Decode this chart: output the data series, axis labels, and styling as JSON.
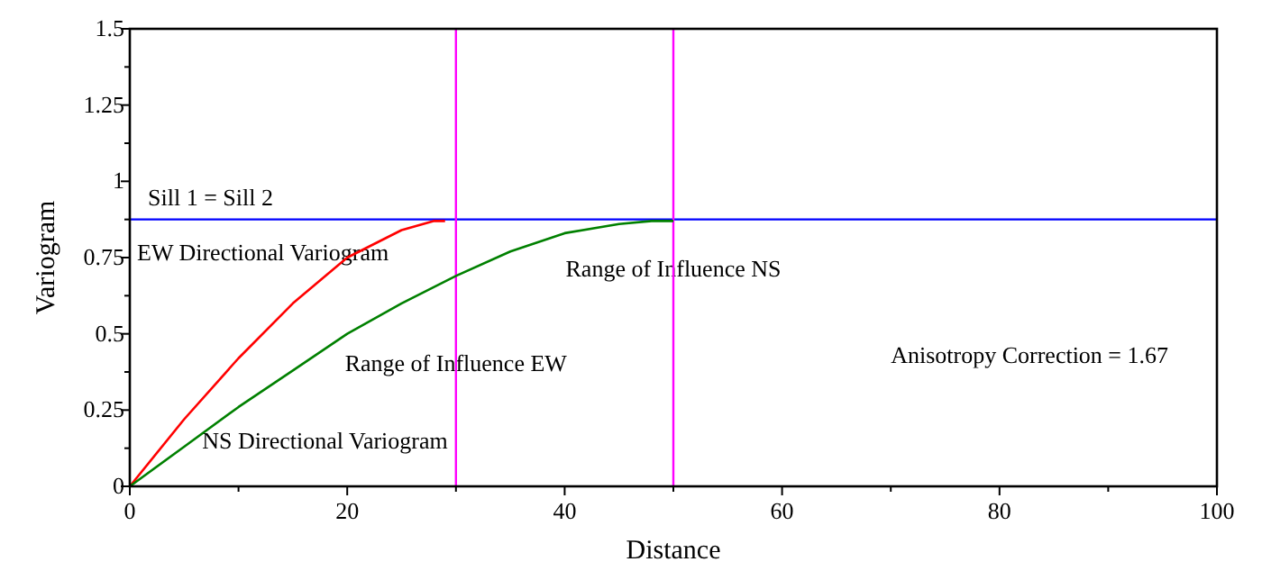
{
  "chart_data": {
    "type": "line",
    "xlabel": "Distance",
    "ylabel": "Variogram",
    "xlim": [
      0,
      100
    ],
    "ylim": [
      0,
      1.5
    ],
    "xticks": [
      0,
      {
        "value": 10,
        "label": null
      },
      20,
      {
        "value": 30,
        "label": null
      },
      40,
      {
        "value": 50,
        "label": null
      },
      60,
      {
        "value": 70,
        "label": null
      },
      80,
      {
        "value": 90,
        "label": null
      },
      100
    ],
    "yticks": [
      0,
      {
        "value": 0.125,
        "label": null
      },
      0.25,
      {
        "value": 0.375,
        "label": null
      },
      0.5,
      {
        "value": 0.625,
        "label": null
      },
      0.75,
      {
        "value": 0.875,
        "label": null
      },
      1,
      {
        "value": 1.125,
        "label": null
      },
      1.25,
      {
        "value": 1.375,
        "label": null
      },
      1.5
    ],
    "grid": false,
    "marker": "none",
    "line_style": "solid",
    "series": [
      {
        "name": "EW Directional Variogram",
        "color": "#ff0000",
        "x": [
          0,
          5,
          10,
          15,
          20,
          25,
          28,
          29
        ],
        "values": [
          0,
          0.22,
          0.42,
          0.6,
          0.75,
          0.84,
          0.87,
          0.87
        ]
      },
      {
        "name": "NS Directional Variogram",
        "color": "#008000",
        "x": [
          0,
          5,
          10,
          15,
          20,
          25,
          30,
          35,
          40,
          45,
          48,
          50
        ],
        "values": [
          0,
          0.13,
          0.26,
          0.38,
          0.5,
          0.6,
          0.69,
          0.77,
          0.83,
          0.86,
          0.87,
          0.87
        ]
      }
    ],
    "ref_lines": [
      {
        "axis": "y",
        "value": 0.875,
        "color": "#0000ff"
      },
      {
        "axis": "x",
        "value": 30,
        "color": "#ff00ff"
      },
      {
        "axis": "x",
        "value": 50,
        "color": "#ff00ff"
      }
    ],
    "annotations": [
      {
        "text": "Sill 1 = Sill 2",
        "x": 1,
        "y": 0.875
      },
      {
        "text": "Range of Influence NS",
        "x": 50,
        "y": 0.64
      },
      {
        "text": "Range of Influence EW",
        "x": 30,
        "y": 0.33
      },
      "Anisotropy Correction = 1.67"
    ]
  }
}
